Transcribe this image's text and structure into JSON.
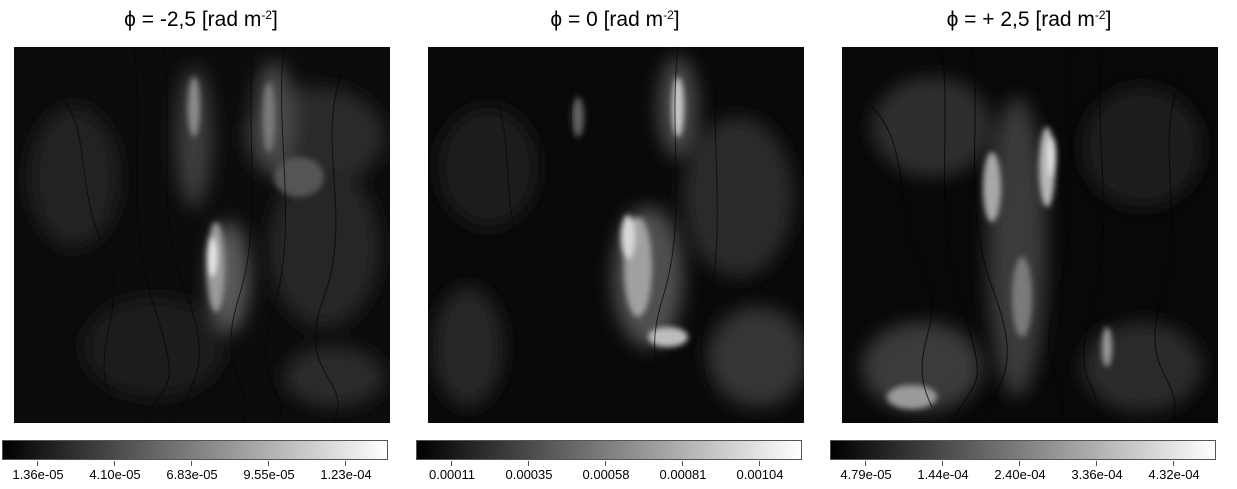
{
  "panels": [
    {
      "title": {
        "phi": "ϕ",
        "text": " = -2,5 [rad m",
        "sup": "-2",
        "close": "]"
      },
      "colorbar_labels": [
        "1.36e-05",
        "4.10e-05",
        "6.83e-05",
        "9.55e-05",
        "1.23e-04"
      ]
    },
    {
      "title": {
        "phi": "ϕ",
        "text": " = 0 [rad m",
        "sup": "-2",
        "close": "]"
      },
      "colorbar_labels": [
        "0.00011",
        "0.00035",
        "0.00058",
        "0.00081",
        "0.00104"
      ]
    },
    {
      "title": {
        "phi": "ϕ",
        "text": " = + 2,5 [rad m",
        "sup": "-2",
        "close": "]"
      },
      "colorbar_labels": [
        "4.79e-05",
        "1.44e-04",
        "2.40e-04",
        "3.36e-04",
        "4.32e-04"
      ]
    }
  ],
  "colormap": {
    "low": "#000000",
    "high": "#ffffff"
  }
}
